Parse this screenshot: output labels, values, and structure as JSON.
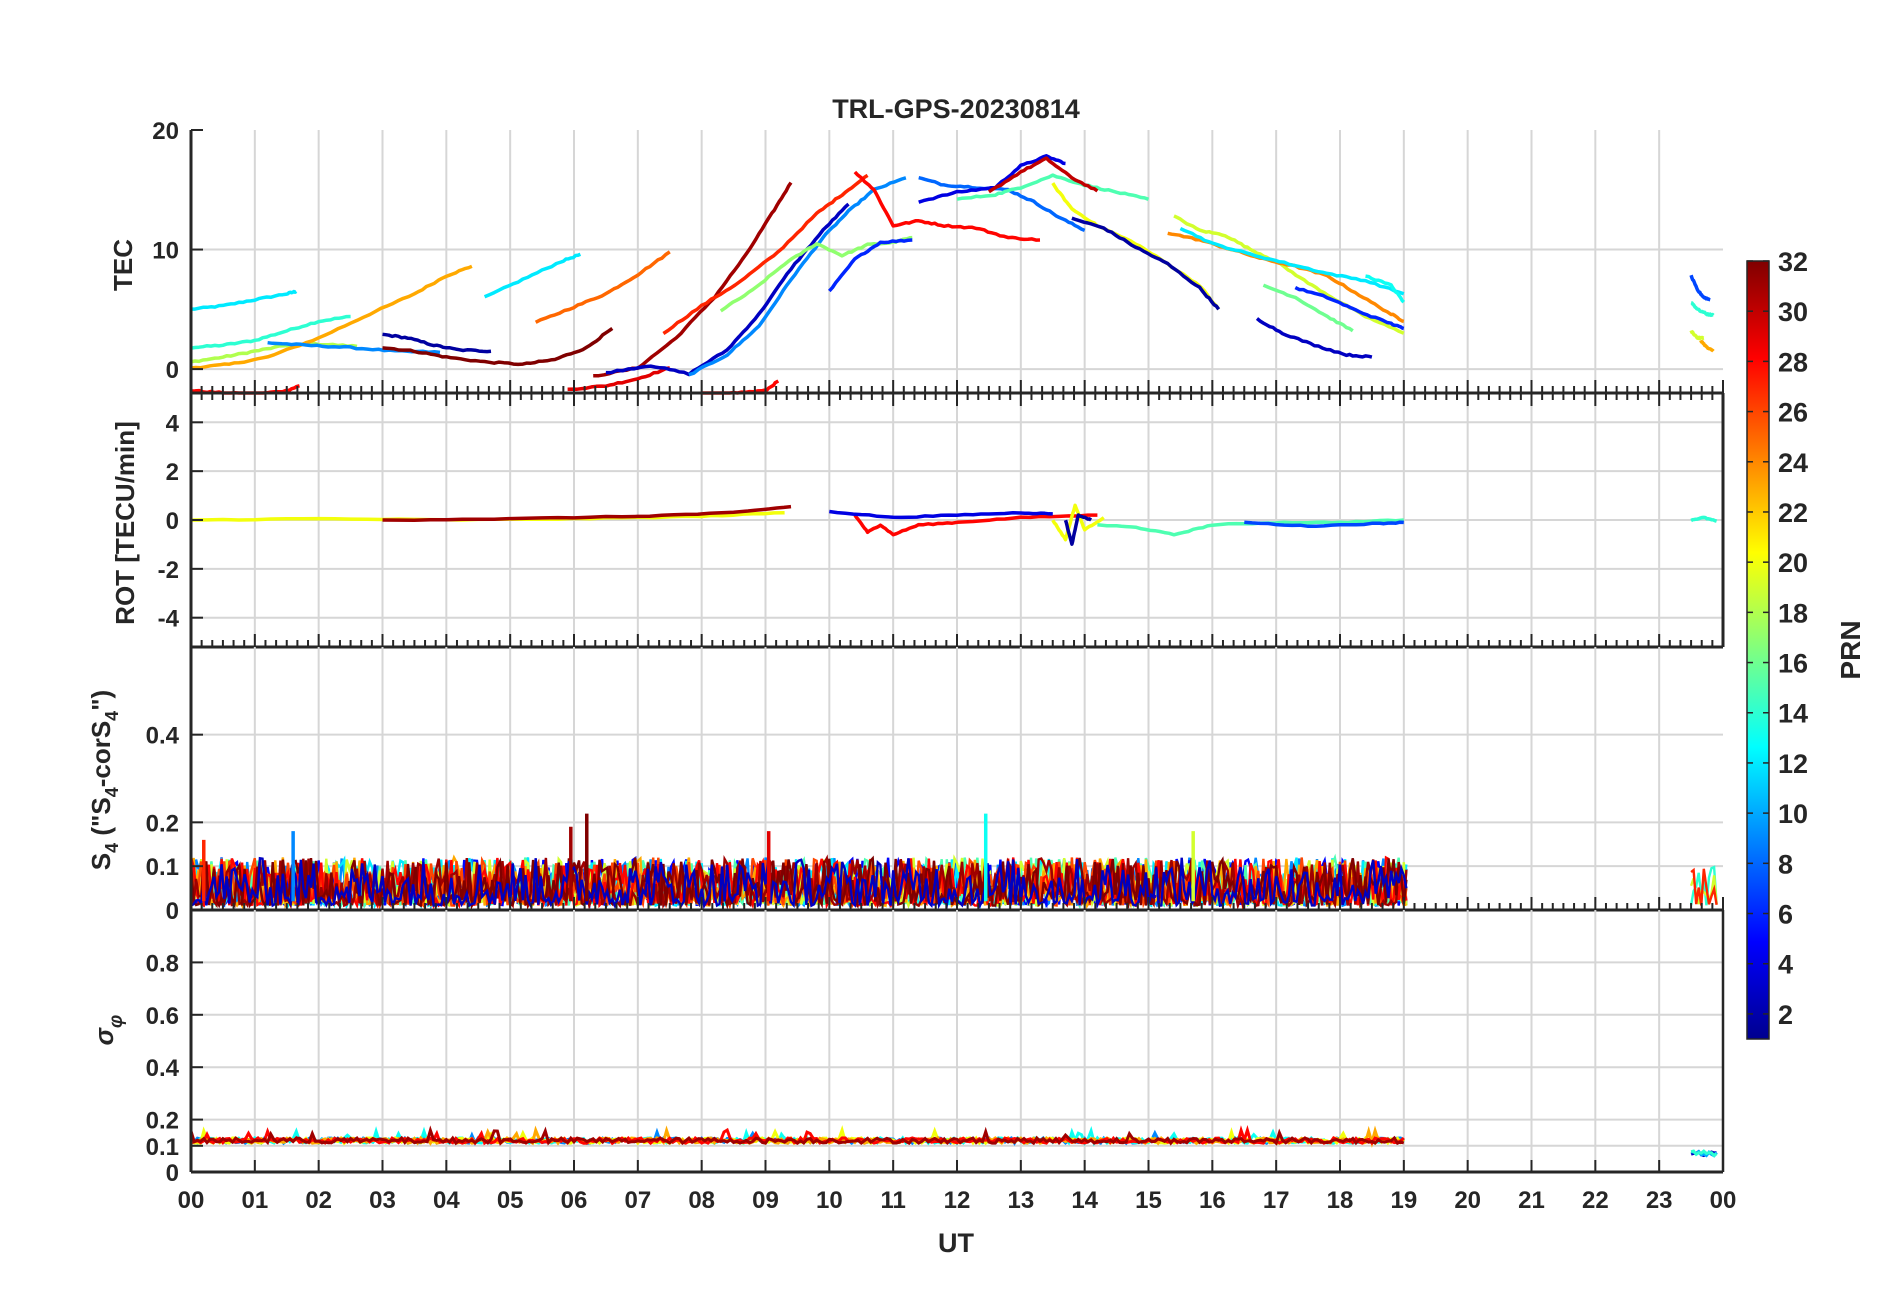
{
  "title": "TRL-GPS-20230814",
  "xlabel": "UT",
  "x_ticks": [
    "00",
    "01",
    "02",
    "03",
    "04",
    "05",
    "06",
    "07",
    "08",
    "09",
    "10",
    "11",
    "12",
    "13",
    "14",
    "15",
    "16",
    "17",
    "18",
    "19",
    "20",
    "21",
    "22",
    "23",
    "00"
  ],
  "colorbar": {
    "label": "PRN",
    "range": [
      1,
      32
    ],
    "ticks": [
      2,
      4,
      6,
      8,
      10,
      12,
      14,
      16,
      18,
      20,
      22,
      24,
      26,
      28,
      30,
      32
    ],
    "tick_labels": [
      "2",
      "4",
      "6",
      "8",
      "10",
      "12",
      "14",
      "16",
      "18",
      "20",
      "22",
      "24",
      "26",
      "28",
      "30",
      "32"
    ],
    "colormap": "jet"
  },
  "chart_data": [
    {
      "type": "line",
      "panel": "TEC",
      "ylabel": "TEC",
      "xlim": [
        0,
        24
      ],
      "ylim": [
        -2,
        20
      ],
      "y_ticks": [
        0,
        10,
        20
      ],
      "y_tick_labels": [
        "0",
        "10",
        "20"
      ],
      "series": [
        {
          "prn": 12,
          "x": [
            0,
            0.5,
            1,
            1.5,
            1.65
          ],
          "y": [
            5,
            5.3,
            5.8,
            6.3,
            6.5
          ]
        },
        {
          "prn": 14,
          "x": [
            0,
            0.5,
            1,
            1.5,
            2,
            2.5
          ],
          "y": [
            1.8,
            2.0,
            2.4,
            3.2,
            4.0,
            4.4
          ]
        },
        {
          "prn": 18,
          "x": [
            0,
            0.5,
            1,
            1.5,
            2,
            2.6
          ],
          "y": [
            0.6,
            1.0,
            1.5,
            2.0,
            2.1,
            1.9
          ]
        },
        {
          "prn": 23,
          "x": [
            0,
            0.6,
            1.2,
            2,
            2.8,
            3.5,
            4.0,
            4.4
          ],
          "y": [
            0.1,
            0.4,
            1.0,
            2.6,
            4.6,
            6.3,
            7.8,
            8.6
          ]
        },
        {
          "prn": 28,
          "x": [
            0,
            0.5,
            1,
            1.5,
            1.7
          ],
          "y": [
            -1.8,
            -2.0,
            -2.1,
            -1.8,
            -1.4
          ]
        },
        {
          "prn": 9,
          "x": [
            1.2,
            1.8,
            2.5,
            3.2,
            3.9
          ],
          "y": [
            2.2,
            2.0,
            1.8,
            1.5,
            1.4
          ]
        },
        {
          "prn": 2,
          "x": [
            3.0,
            3.4,
            3.8,
            4.2,
            4.7
          ],
          "y": [
            2.9,
            2.6,
            2.0,
            1.6,
            1.5
          ]
        },
        {
          "prn": 32,
          "x": [
            3.0,
            3.5,
            4.0,
            4.6,
            5.2,
            5.7,
            6.2,
            6.6
          ],
          "y": [
            1.8,
            1.5,
            1.0,
            0.6,
            0.4,
            0.8,
            1.8,
            3.4
          ]
        },
        {
          "prn": 12,
          "x": [
            4.6,
            5.2,
            5.8,
            6.1
          ],
          "y": [
            6.0,
            7.5,
            9.0,
            9.6
          ]
        },
        {
          "prn": 25,
          "x": [
            5.4,
            6.0,
            6.5,
            7.0,
            7.5
          ],
          "y": [
            3.9,
            5.2,
            6.3,
            7.9,
            9.8
          ]
        },
        {
          "prn": 29,
          "x": [
            5.9,
            6.5,
            7.0,
            7.5
          ],
          "y": [
            -1.7,
            -1.4,
            -0.8,
            0.1
          ]
        },
        {
          "prn": 31,
          "x": [
            6.3,
            7.0,
            7.6,
            8.2,
            8.7,
            9.1,
            9.4
          ],
          "y": [
            -0.6,
            0.1,
            2.6,
            6.0,
            9.6,
            13.0,
            15.6
          ]
        },
        {
          "prn": 27,
          "x": [
            7.4,
            8.0,
            8.6,
            9.2,
            9.8,
            10.2,
            10.6
          ],
          "y": [
            3.0,
            5.3,
            7.3,
            9.8,
            13.0,
            14.6,
            16.2
          ]
        },
        {
          "prn": 3,
          "x": [
            6.5,
            7.2,
            7.8,
            8.4,
            8.9,
            9.4,
            9.9,
            10.3
          ],
          "y": [
            -0.3,
            0.3,
            -0.4,
            1.6,
            4.6,
            8.4,
            11.6,
            13.8
          ]
        },
        {
          "prn": 9,
          "x": [
            7.8,
            8.4,
            8.9,
            9.4,
            9.9,
            10.3,
            10.7,
            11.2
          ],
          "y": [
            -0.5,
            1.2,
            3.6,
            7.5,
            11.0,
            13.2,
            15.0,
            16.0
          ]
        },
        {
          "prn": 17,
          "x": [
            8.3,
            8.8,
            9.3,
            9.8,
            10.2,
            10.6,
            11.0,
            11.3
          ],
          "y": [
            4.9,
            6.6,
            8.8,
            10.5,
            9.5,
            10.4,
            10.6,
            11.0
          ]
        },
        {
          "prn": 28,
          "x": [
            8.0,
            8.5,
            9.0,
            9.2
          ],
          "y": [
            -2.1,
            -2.0,
            -1.8,
            -1.0
          ]
        },
        {
          "prn": 6,
          "x": [
            10.0,
            10.4,
            10.8,
            11.3
          ],
          "y": [
            6.5,
            9.2,
            10.6,
            10.8
          ]
        },
        {
          "prn": 28,
          "x": [
            10.4,
            10.7,
            11.0,
            11.4,
            11.8,
            12.3,
            12.8,
            13.3
          ],
          "y": [
            16.5,
            15.0,
            12.0,
            12.4,
            12.0,
            11.8,
            11.0,
            10.8
          ]
        },
        {
          "prn": 8,
          "x": [
            11.4,
            11.8,
            12.3,
            12.8,
            13.2,
            13.6,
            14.0
          ],
          "y": [
            16.0,
            15.4,
            15.2,
            15.0,
            14.0,
            12.7,
            11.6
          ]
        },
        {
          "prn": 4,
          "x": [
            11.4,
            12.0,
            12.6,
            13.0,
            13.4,
            13.7
          ],
          "y": [
            14.0,
            14.8,
            15.2,
            17.0,
            17.8,
            17.2
          ]
        },
        {
          "prn": 15,
          "x": [
            12.0,
            12.6,
            13.0,
            13.5,
            14.0,
            14.5,
            15.0
          ],
          "y": [
            14.2,
            14.6,
            15.2,
            16.2,
            15.4,
            14.8,
            14.2
          ]
        },
        {
          "prn": 30,
          "x": [
            12.5,
            13.0,
            13.4,
            13.8,
            14.2
          ],
          "y": [
            14.8,
            16.5,
            17.6,
            16.0,
            14.9
          ]
        },
        {
          "prn": 20,
          "x": [
            13.5,
            13.8,
            14.2,
            14.8,
            15.3,
            15.8,
            16.1
          ],
          "y": [
            15.5,
            13.4,
            12.0,
            10.5,
            8.8,
            7.0,
            5.0
          ]
        },
        {
          "prn": 2,
          "x": [
            13.8,
            14.3,
            14.8,
            15.3,
            15.8,
            16.1
          ],
          "y": [
            12.6,
            11.8,
            10.2,
            8.8,
            6.8,
            5.0
          ]
        },
        {
          "prn": 19,
          "x": [
            15.4,
            15.8,
            16.2,
            16.6,
            17.0,
            17.5,
            18.0,
            18.4,
            19.0
          ],
          "y": [
            12.8,
            11.6,
            11.2,
            10.0,
            9.0,
            7.2,
            5.6,
            4.4,
            3.0
          ]
        },
        {
          "prn": 24,
          "x": [
            15.3,
            15.8,
            16.3,
            16.8,
            17.3,
            17.8,
            18.3,
            18.8,
            19.0
          ],
          "y": [
            11.4,
            10.8,
            10.0,
            9.2,
            8.6,
            7.8,
            6.2,
            4.6,
            4.0
          ]
        },
        {
          "prn": 12,
          "x": [
            15.5,
            16.0,
            16.6,
            17.2,
            17.8,
            18.4,
            19.0
          ],
          "y": [
            11.8,
            10.5,
            9.6,
            8.8,
            8.0,
            7.4,
            6.3
          ]
        },
        {
          "prn": 6,
          "x": [
            17.3,
            17.8,
            18.3,
            18.8,
            19.0
          ],
          "y": [
            6.8,
            6.0,
            4.8,
            3.8,
            3.4
          ]
        },
        {
          "prn": 3,
          "x": [
            16.7,
            17.1,
            17.6,
            18.1,
            18.5
          ],
          "y": [
            4.2,
            3.0,
            2.0,
            1.2,
            1.0
          ]
        },
        {
          "prn": 16,
          "x": [
            16.8,
            17.3,
            17.8,
            18.2
          ],
          "y": [
            7.0,
            6.0,
            4.4,
            3.2
          ]
        },
        {
          "prn": 13,
          "x": [
            18.4,
            18.8,
            19.0
          ],
          "y": [
            7.8,
            7.0,
            5.6
          ]
        },
        {
          "prn": 7,
          "x": [
            23.5,
            23.6,
            23.7,
            23.8
          ],
          "y": [
            7.8,
            6.6,
            6.0,
            5.8
          ]
        },
        {
          "prn": 14,
          "x": [
            23.5,
            23.6,
            23.75,
            23.85
          ],
          "y": [
            5.6,
            5.0,
            4.6,
            4.5
          ]
        },
        {
          "prn": 19,
          "x": [
            23.5,
            23.6,
            23.7
          ],
          "y": [
            3.2,
            2.6,
            2.6
          ]
        },
        {
          "prn": 23,
          "x": [
            23.65,
            23.75,
            23.85
          ],
          "y": [
            2.4,
            1.8,
            1.5
          ]
        }
      ]
    },
    {
      "type": "line",
      "panel": "ROT",
      "ylabel": "ROT [TECU/min]",
      "xlim": [
        0,
        24
      ],
      "ylim": [
        -5.2,
        5.2
      ],
      "y_ticks": [
        -4,
        -2,
        0,
        2,
        4
      ],
      "y_tick_labels": [
        "-4",
        "-2",
        "0",
        "2",
        "4"
      ],
      "series": [
        {
          "prn": 20,
          "x": [
            0,
            2,
            4,
            6,
            8,
            9.3
          ],
          "y": [
            0,
            0.05,
            0,
            0.05,
            0.15,
            0.3
          ]
        },
        {
          "prn": 31,
          "x": [
            3,
            5,
            7,
            8.5,
            9.4
          ],
          "y": [
            0,
            0.05,
            0.15,
            0.3,
            0.55
          ]
        },
        {
          "prn": 28,
          "x": [
            10.4,
            10.6,
            10.8,
            11.0,
            11.4,
            12.0,
            13.0,
            14.2
          ],
          "y": [
            0.2,
            -0.5,
            -0.2,
            -0.6,
            -0.2,
            -0.1,
            0.1,
            0.2
          ]
        },
        {
          "prn": 4,
          "x": [
            10.0,
            11.0,
            12.0,
            13.0,
            13.5
          ],
          "y": [
            0.35,
            0.1,
            0.2,
            0.3,
            0.25
          ]
        },
        {
          "prn": 20,
          "x": [
            13.5,
            13.7,
            13.85,
            14.0,
            14.3
          ],
          "y": [
            0.0,
            -0.8,
            0.6,
            -0.4,
            0.1
          ]
        },
        {
          "prn": 2,
          "x": [
            13.7,
            13.8,
            13.9,
            14.1
          ],
          "y": [
            0.0,
            -1.0,
            0.2,
            0.0
          ]
        },
        {
          "prn": 15,
          "x": [
            14.2,
            14.8,
            15.4,
            16.0,
            17.0,
            18.0,
            19.0
          ],
          "y": [
            -0.2,
            -0.3,
            -0.6,
            -0.2,
            -0.1,
            -0.1,
            0.0
          ]
        },
        {
          "prn": 7,
          "x": [
            16.5,
            17.5,
            18.5,
            19.0
          ],
          "y": [
            -0.1,
            -0.25,
            -0.15,
            -0.1
          ]
        },
        {
          "prn": 14,
          "x": [
            23.5,
            23.7,
            23.9
          ],
          "y": [
            0.0,
            0.1,
            -0.05
          ]
        }
      ]
    },
    {
      "type": "line",
      "panel": "S4",
      "ylabel": "S4 (\"S4-corS4\")",
      "xlim": [
        0,
        24
      ],
      "ylim": [
        0,
        0.6
      ],
      "y_ticks": [
        0,
        0.1,
        0.2,
        0.4
      ],
      "y_tick_labels": [
        "0",
        "0.1",
        "0.2",
        "0.4"
      ],
      "noisy_band": {
        "x_range": [
          0,
          19.05
        ],
        "typical_range": [
          0.01,
          0.12
        ],
        "peak_max": 0.22
      },
      "noisy_band_2": {
        "x_range": [
          23.5,
          23.9
        ],
        "typical_range": [
          0.01,
          0.1
        ]
      },
      "peaks": [
        {
          "x": 6.2,
          "y": 0.22,
          "prn": 32
        },
        {
          "x": 5.95,
          "y": 0.19,
          "prn": 31
        },
        {
          "x": 12.45,
          "y": 0.22,
          "prn": 13
        },
        {
          "x": 1.6,
          "y": 0.18,
          "prn": 9
        },
        {
          "x": 15.7,
          "y": 0.18,
          "prn": 19
        },
        {
          "x": 9.05,
          "y": 0.18,
          "prn": 29
        },
        {
          "x": 0.2,
          "y": 0.16,
          "prn": 27
        }
      ]
    },
    {
      "type": "line",
      "panel": "sigma_phi",
      "ylabel": "σφ",
      "xlim": [
        0,
        24
      ],
      "ylim": [
        0,
        1
      ],
      "y_ticks": [
        0,
        0.1,
        0.2,
        0.4,
        0.6,
        0.8
      ],
      "y_tick_labels": [
        "0",
        "0.1",
        "0.2",
        "0.4",
        "0.6",
        "0.8"
      ],
      "noisy_band": {
        "x_range": [
          0,
          19.05
        ],
        "typical_value": 0.12,
        "peak_max": 0.17
      },
      "noisy_band_2": {
        "x_range": [
          23.5,
          23.9
        ],
        "typical_value": 0.07
      }
    }
  ]
}
